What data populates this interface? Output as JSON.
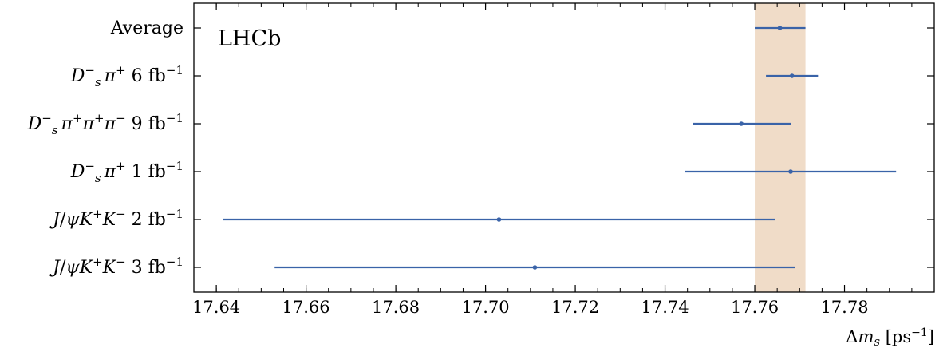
{
  "chart_data": {
    "type": "scatter",
    "subtype": "forest-plot-with-horizontal-error-bars",
    "experiment_label": "LHCb",
    "xlabel": "Δm_s [ps⁻¹]",
    "x_ticks": [
      "17.64",
      "17.66",
      "17.68",
      "17.70",
      "17.72",
      "17.74",
      "17.76",
      "17.78"
    ],
    "xlim": [
      17.635,
      17.8
    ],
    "grid": false,
    "series_color": "#3a63a8",
    "band": {
      "low": 17.76,
      "high": 17.7713,
      "color": "#f0dcc8"
    },
    "measurements": [
      {
        "label": "Average",
        "value": 17.7656,
        "err_low": 17.76,
        "err_high": 17.7713
      },
      {
        "label": "D_s^- π^+ 6 fb^-1",
        "value": 17.7683,
        "err_low": 17.7625,
        "err_high": 17.7741
      },
      {
        "label": "D_s^- π^+ π^+ π^- 9 fb^-1",
        "value": 17.757,
        "err_low": 17.7463,
        "err_high": 17.768
      },
      {
        "label": "D_s^- π^+ 1 fb^-1",
        "value": 17.768,
        "err_low": 17.7445,
        "err_high": 17.7915
      },
      {
        "label": "J/ψ K^+ K^- 2 fb^-1",
        "value": 17.703,
        "err_low": 17.6415,
        "err_high": 17.7645
      },
      {
        "label": "J/ψ K^+ K^- 3 fb^-1",
        "value": 17.711,
        "err_low": 17.653,
        "err_high": 17.769
      }
    ]
  }
}
